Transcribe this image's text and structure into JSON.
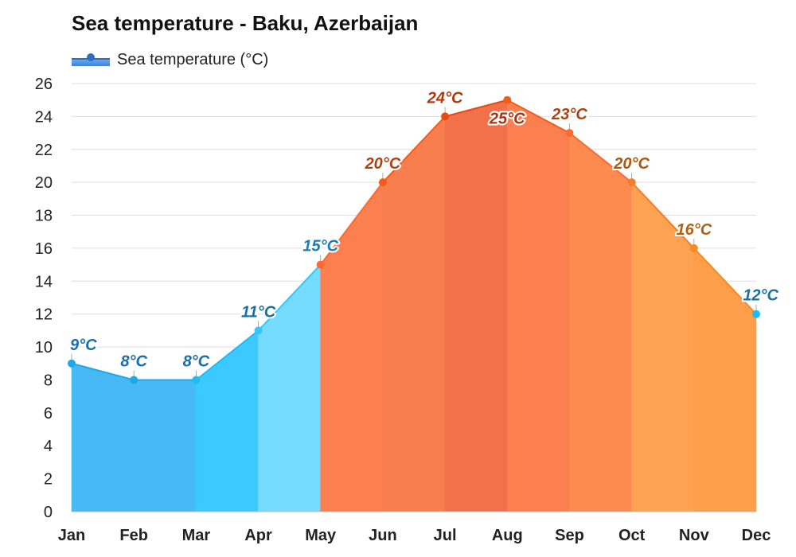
{
  "chart_data": {
    "type": "area",
    "title": "Sea temperature - Baku, Azerbaijan",
    "legend": {
      "label": "Sea temperature (°C)",
      "placement": "top-left"
    },
    "categories": [
      "Jan",
      "Feb",
      "Mar",
      "Apr",
      "May",
      "Jun",
      "Jul",
      "Aug",
      "Sep",
      "Oct",
      "Nov",
      "Dec"
    ],
    "series": [
      {
        "name": "Sea temperature (°C)",
        "values": [
          9,
          8,
          8,
          11,
          15,
          20,
          24,
          25,
          23,
          20,
          16,
          12
        ],
        "data_labels": [
          "9°C",
          "8°C",
          "8°C",
          "11°C",
          "15°C",
          "20°C",
          "24°C",
          "25°C",
          "23°C",
          "20°C",
          "16°C",
          "12°C"
        ]
      }
    ],
    "ylim": [
      0,
      26
    ],
    "yticks": [
      0,
      2,
      4,
      6,
      8,
      10,
      12,
      14,
      16,
      18,
      20,
      22,
      24,
      26
    ],
    "grid": true,
    "month_colors": {
      "fill": [
        "#47b9f7",
        "#47b9f7",
        "#3bc9ff",
        "#75dcff",
        "#fb7f4f",
        "#f87e50",
        "#f2704a",
        "#fb7f4f",
        "#fd8a4e",
        "#fda250",
        "#fd9f4a",
        "#4dcffc"
      ],
      "line": [
        "#1ba9ea",
        "#1ba9ea",
        "#21baf5",
        "#34c6fc",
        "#fb6a33",
        "#f25e1a",
        "#e14d12",
        "#f25e1a",
        "#fb6a33",
        "#fb7a22",
        "#fb8a1c",
        "#21baf5"
      ],
      "label": [
        "#1a6fa6",
        "#1a6fa6",
        "#1a6fa6",
        "#1a6fa6",
        "#1a7fb5",
        "#b04212",
        "#b03a10",
        "#a83510",
        "#b04212",
        "#b0560f",
        "#b0620f",
        "#1a6fa6"
      ]
    }
  }
}
